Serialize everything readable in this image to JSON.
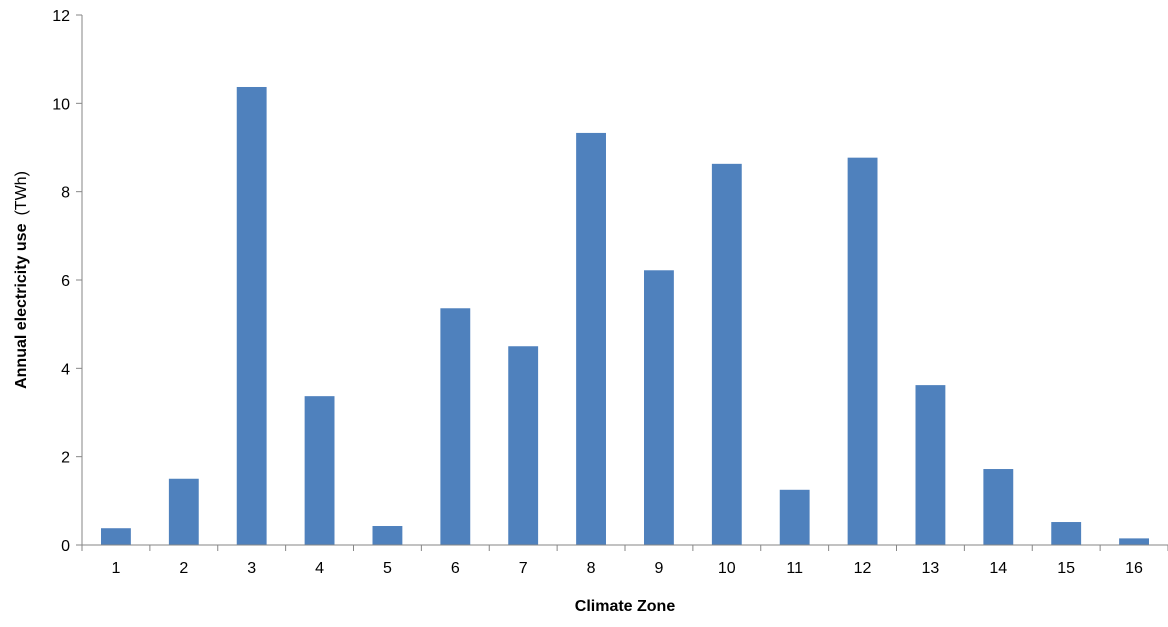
{
  "chart_data": {
    "type": "bar",
    "title": "",
    "xlabel": "Climate Zone",
    "ylabel": "Annual electricity use",
    "ylabel_unit": "(TWh)",
    "categories": [
      "1",
      "2",
      "3",
      "4",
      "5",
      "6",
      "7",
      "8",
      "9",
      "10",
      "11",
      "12",
      "13",
      "14",
      "15",
      "16"
    ],
    "values": [
      0.38,
      1.5,
      10.37,
      3.37,
      0.43,
      5.36,
      4.5,
      9.33,
      6.22,
      8.63,
      1.25,
      8.77,
      3.62,
      1.72,
      0.52,
      0.15
    ],
    "ylim": [
      0,
      12
    ],
    "yticks": [
      "0",
      "2",
      "4",
      "6",
      "8",
      "10",
      "12"
    ],
    "grid": false,
    "legend": "none",
    "bar_color": "#4f81bd",
    "axis_color": "#868686"
  }
}
